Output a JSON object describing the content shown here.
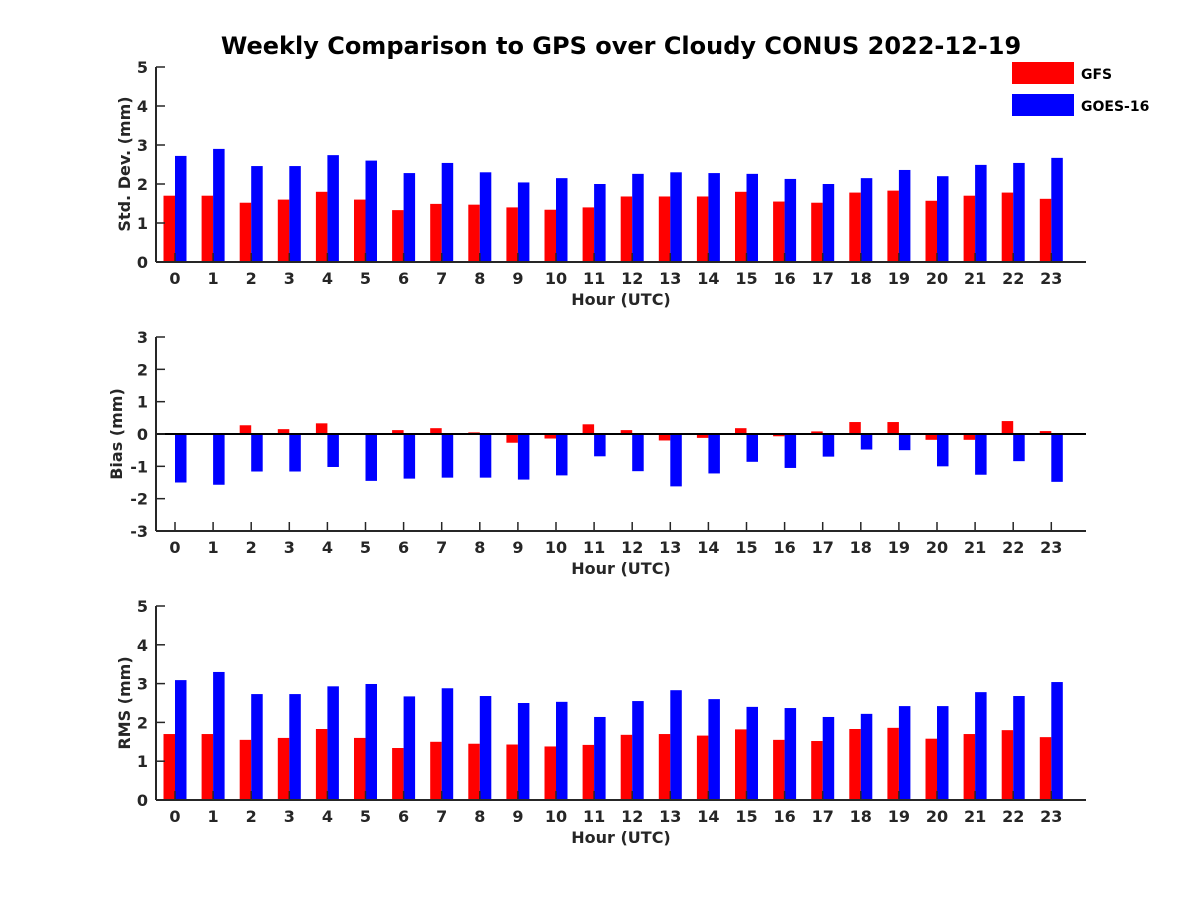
{
  "title": "Weekly Comparison to GPS over Cloudy CONUS 2022-12-19",
  "legend": [
    {
      "name": "GFS",
      "color": "#ff0000"
    },
    {
      "name": "GOES-16",
      "color": "#0000ff"
    }
  ],
  "chart_data": [
    {
      "type": "bar",
      "xlabel": "Hour (UTC)",
      "ylabel": "Std. Dev. (mm)",
      "ylim": [
        0,
        5
      ],
      "yticks": [
        0,
        1,
        2,
        3,
        4,
        5
      ],
      "categories": [
        "0",
        "1",
        "2",
        "3",
        "4",
        "5",
        "6",
        "7",
        "8",
        "9",
        "10",
        "11",
        "12",
        "13",
        "14",
        "15",
        "16",
        "17",
        "18",
        "19",
        "20",
        "21",
        "22",
        "23"
      ],
      "series": [
        {
          "name": "GFS",
          "color": "#ff0000",
          "values": [
            1.7,
            1.7,
            1.52,
            1.6,
            1.8,
            1.6,
            1.33,
            1.49,
            1.47,
            1.4,
            1.34,
            1.4,
            1.68,
            1.68,
            1.68,
            1.8,
            1.55,
            1.52,
            1.78,
            1.83,
            1.57,
            1.7,
            1.78,
            1.62
          ]
        },
        {
          "name": "GOES-16",
          "color": "#0000ff",
          "values": [
            2.72,
            2.9,
            2.46,
            2.46,
            2.74,
            2.6,
            2.28,
            2.54,
            2.3,
            2.04,
            2.15,
            2.0,
            2.26,
            2.3,
            2.28,
            2.26,
            2.13,
            2.0,
            2.15,
            2.36,
            2.2,
            2.49,
            2.54,
            2.67
          ]
        }
      ]
    },
    {
      "type": "bar",
      "xlabel": "Hour (UTC)",
      "ylabel": "Bias (mm)",
      "ylim": [
        -3,
        3
      ],
      "yticks": [
        -3,
        -2,
        -1,
        0,
        1,
        2,
        3
      ],
      "zero_line": true,
      "categories": [
        "0",
        "1",
        "2",
        "3",
        "4",
        "5",
        "6",
        "7",
        "8",
        "9",
        "10",
        "11",
        "12",
        "13",
        "14",
        "15",
        "16",
        "17",
        "18",
        "19",
        "20",
        "21",
        "22",
        "23"
      ],
      "series": [
        {
          "name": "GFS",
          "color": "#ff0000",
          "values": [
            0.0,
            0.0,
            0.27,
            0.15,
            0.33,
            0.0,
            0.12,
            0.18,
            0.05,
            -0.27,
            -0.14,
            0.3,
            0.12,
            -0.2,
            -0.12,
            0.18,
            -0.07,
            0.08,
            0.37,
            0.37,
            -0.18,
            -0.18,
            0.4,
            0.09
          ]
        },
        {
          "name": "GOES-16",
          "color": "#0000ff",
          "values": [
            -1.5,
            -1.57,
            -1.16,
            -1.16,
            -1.02,
            -1.45,
            -1.38,
            -1.35,
            -1.35,
            -1.41,
            -1.28,
            -0.69,
            -1.15,
            -1.62,
            -1.22,
            -0.86,
            -1.05,
            -0.7,
            -0.48,
            -0.5,
            -1.0,
            -1.26,
            -0.84,
            -1.48
          ]
        }
      ]
    },
    {
      "type": "bar",
      "xlabel": "Hour (UTC)",
      "ylabel": "RMS (mm)",
      "ylim": [
        0,
        5
      ],
      "yticks": [
        0,
        1,
        2,
        3,
        4,
        5
      ],
      "categories": [
        "0",
        "1",
        "2",
        "3",
        "4",
        "5",
        "6",
        "7",
        "8",
        "9",
        "10",
        "11",
        "12",
        "13",
        "14",
        "15",
        "16",
        "17",
        "18",
        "19",
        "20",
        "21",
        "22",
        "23"
      ],
      "series": [
        {
          "name": "GFS",
          "color": "#ff0000",
          "values": [
            1.7,
            1.7,
            1.55,
            1.6,
            1.83,
            1.6,
            1.34,
            1.5,
            1.45,
            1.43,
            1.38,
            1.42,
            1.68,
            1.7,
            1.66,
            1.82,
            1.55,
            1.52,
            1.83,
            1.86,
            1.58,
            1.7,
            1.8,
            1.62
          ]
        },
        {
          "name": "GOES-16",
          "color": "#0000ff",
          "values": [
            3.09,
            3.3,
            2.73,
            2.73,
            2.93,
            2.99,
            2.67,
            2.88,
            2.68,
            2.5,
            2.53,
            2.14,
            2.55,
            2.83,
            2.6,
            2.4,
            2.37,
            2.14,
            2.22,
            2.42,
            2.42,
            2.78,
            2.68,
            3.04
          ]
        }
      ]
    }
  ]
}
